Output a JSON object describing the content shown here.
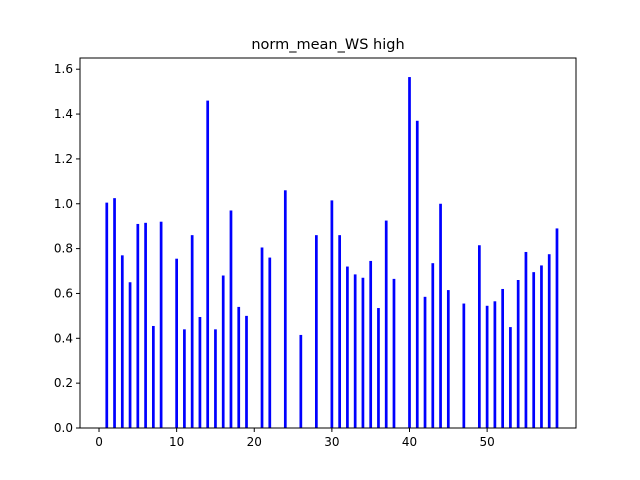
{
  "chart_data": {
    "type": "bar",
    "title": "norm_mean_WS high",
    "xlabel": "",
    "ylabel": "",
    "xlim": [
      -2.45,
      61.45
    ],
    "ylim": [
      0,
      1.65
    ],
    "xticks": [
      0,
      10,
      20,
      30,
      40,
      50
    ],
    "yticks": [
      0.0,
      0.2,
      0.4,
      0.6,
      0.8,
      1.0,
      1.2,
      1.4,
      1.6
    ],
    "ytick_labels": [
      "0.0",
      "0.2",
      "0.4",
      "0.6",
      "0.8",
      "1.0",
      "1.2",
      "1.4",
      "1.6"
    ],
    "bar_color": "#0000ff",
    "x": [
      1,
      2,
      3,
      4,
      5,
      6,
      7,
      8,
      10,
      11,
      12,
      13,
      14,
      15,
      16,
      17,
      18,
      19,
      21,
      22,
      24,
      26,
      28,
      30,
      31,
      32,
      33,
      34,
      35,
      36,
      37,
      38,
      40,
      41,
      42,
      43,
      44,
      45,
      47,
      49,
      50,
      51,
      52,
      53,
      54,
      55,
      56,
      57,
      58,
      59
    ],
    "values": [
      1.005,
      1.025,
      0.77,
      0.65,
      0.91,
      0.915,
      0.455,
      0.92,
      0.755,
      0.44,
      0.86,
      0.495,
      1.46,
      0.44,
      0.68,
      0.97,
      0.54,
      0.5,
      0.805,
      0.76,
      1.06,
      0.415,
      0.86,
      1.015,
      0.86,
      0.72,
      0.685,
      0.67,
      0.745,
      0.535,
      0.925,
      0.665,
      1.565,
      1.37,
      0.585,
      0.735,
      1.0,
      0.615,
      0.555,
      0.815,
      0.545,
      0.565,
      0.62,
      0.45,
      0.66,
      0.785,
      0.695,
      0.725,
      0.775,
      0.89
    ]
  }
}
